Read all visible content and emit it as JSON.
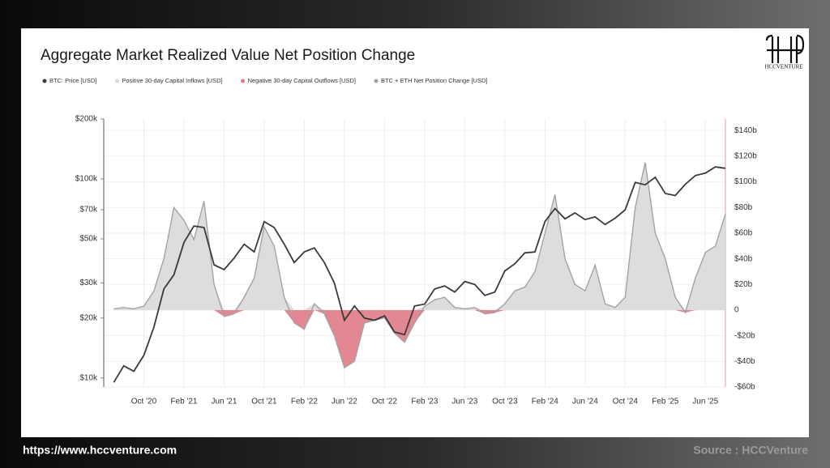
{
  "chart_data": {
    "type": "line",
    "title": "Aggregate Market Realized Value Net Position Change",
    "x": [
      "2020-07",
      "2020-08",
      "2020-09",
      "2020-10",
      "2020-11",
      "2020-12",
      "2021-01",
      "2021-02",
      "2021-03",
      "2021-04",
      "2021-05",
      "2021-06",
      "2021-07",
      "2021-08",
      "2021-09",
      "2021-10",
      "2021-11",
      "2021-12",
      "2022-01",
      "2022-02",
      "2022-03",
      "2022-04",
      "2022-05",
      "2022-06",
      "2022-07",
      "2022-08",
      "2022-09",
      "2022-10",
      "2022-11",
      "2022-12",
      "2023-01",
      "2023-02",
      "2023-03",
      "2023-04",
      "2023-05",
      "2023-06",
      "2023-07",
      "2023-08",
      "2023-09",
      "2023-10",
      "2023-11",
      "2023-12",
      "2024-01",
      "2024-02",
      "2024-03",
      "2024-04",
      "2024-05",
      "2024-06",
      "2024-07",
      "2024-08",
      "2024-09",
      "2024-10",
      "2024-11",
      "2024-12",
      "2025-01",
      "2025-02",
      "2025-03",
      "2025-04",
      "2025-05",
      "2025-06",
      "2025-07",
      "2025-08"
    ],
    "series": [
      {
        "name": "BTC: Price [USD]",
        "color": "#3a3a3a",
        "axis": "y",
        "style": "line",
        "values": [
          9500,
          11500,
          10800,
          13000,
          18000,
          28000,
          33000,
          48000,
          58000,
          57000,
          37000,
          35000,
          40000,
          47000,
          43000,
          61000,
          57000,
          47000,
          38000,
          43000,
          45000,
          38000,
          30000,
          19500,
          23000,
          20000,
          19500,
          20500,
          17000,
          16500,
          23000,
          23500,
          28000,
          29000,
          27000,
          30500,
          29500,
          26000,
          27000,
          34500,
          37500,
          42500,
          43000,
          61000,
          71000,
          63000,
          67500,
          62500,
          64500,
          59000,
          63500,
          70000,
          96000,
          93500,
          102000,
          84500,
          82500,
          94000,
          104000,
          107000,
          115000,
          113000
        ]
      },
      {
        "name": "Positive 30-day Capital Inflows [USD]",
        "color": "#d9d9d9",
        "axis": "y2",
        "style": "area",
        "values": [
          1,
          2,
          1,
          3,
          15,
          40,
          80,
          70,
          55,
          85,
          20,
          0,
          0,
          10,
          25,
          65,
          50,
          10,
          0,
          0,
          5,
          0,
          0,
          0,
          0,
          0,
          0,
          0,
          0,
          0,
          0,
          3,
          8,
          10,
          2,
          1,
          2,
          0,
          0,
          5,
          15,
          18,
          30,
          60,
          90,
          40,
          20,
          15,
          35,
          5,
          2,
          10,
          80,
          115,
          60,
          40,
          10,
          0,
          25,
          45,
          50,
          75
        ]
      },
      {
        "name": "Negative 30-day Capital Outflows [USD]",
        "color": "#e07a86",
        "axis": "y2",
        "style": "area",
        "values": [
          0,
          0,
          0,
          0,
          0,
          0,
          0,
          0,
          0,
          0,
          0,
          -5,
          -3,
          0,
          0,
          0,
          0,
          0,
          -10,
          -15,
          0,
          -3,
          -20,
          -45,
          -40,
          -10,
          -8,
          -6,
          -18,
          -25,
          -10,
          0,
          0,
          0,
          0,
          0,
          0,
          -3,
          -2,
          0,
          0,
          0,
          0,
          0,
          0,
          0,
          0,
          0,
          0,
          0,
          0,
          0,
          0,
          0,
          0,
          0,
          0,
          -2,
          0,
          0,
          0,
          0
        ]
      },
      {
        "name": "BTC + ETH Net Position Change [USD]",
        "color": "#a3a3a3",
        "axis": "y2",
        "style": "line",
        "values": [
          1,
          2,
          1,
          3,
          15,
          40,
          80,
          70,
          55,
          85,
          20,
          -5,
          -3,
          10,
          25,
          65,
          50,
          10,
          -10,
          -15,
          5,
          -3,
          -20,
          -45,
          -40,
          -10,
          -8,
          -6,
          -18,
          -25,
          -10,
          3,
          8,
          10,
          2,
          1,
          2,
          -3,
          -2,
          5,
          15,
          18,
          30,
          60,
          90,
          40,
          20,
          15,
          35,
          5,
          2,
          10,
          80,
          115,
          60,
          40,
          10,
          -2,
          25,
          45,
          50,
          75
        ]
      }
    ],
    "xlim": [
      "2020-06",
      "2025-08"
    ],
    "xticks": [
      {
        "value": "2020-10",
        "label": "Oct '20"
      },
      {
        "value": "2021-02",
        "label": "Feb '21"
      },
      {
        "value": "2021-06",
        "label": "Jun '21"
      },
      {
        "value": "2021-10",
        "label": "Oct '21"
      },
      {
        "value": "2022-02",
        "label": "Feb '22"
      },
      {
        "value": "2022-06",
        "label": "Jun '22"
      },
      {
        "value": "2022-10",
        "label": "Oct '22"
      },
      {
        "value": "2023-02",
        "label": "Feb '23"
      },
      {
        "value": "2023-06",
        "label": "Jun '23"
      },
      {
        "value": "2023-10",
        "label": "Oct '23"
      },
      {
        "value": "2024-02",
        "label": "Feb '24"
      },
      {
        "value": "2024-06",
        "label": "Jun '24"
      },
      {
        "value": "2024-10",
        "label": "Oct '24"
      },
      {
        "value": "2025-02",
        "label": "Feb '25"
      },
      {
        "value": "2025-06",
        "label": "Jun '25"
      }
    ],
    "ylim": [
      9000,
      200000
    ],
    "ylog": true,
    "yticks": [
      {
        "value": 10000,
        "label": "$10k"
      },
      {
        "value": 20000,
        "label": "$20k"
      },
      {
        "value": 30000,
        "label": "$30k"
      },
      {
        "value": 50000,
        "label": "$50k"
      },
      {
        "value": 70000,
        "label": "$70k"
      },
      {
        "value": 100000,
        "label": "$100k"
      },
      {
        "value": 200000,
        "label": "$200k"
      }
    ],
    "y2lim": [
      -60,
      149
    ],
    "y2ticks": [
      {
        "value": -60,
        "label": "-$60b"
      },
      {
        "value": -40,
        "label": "-$40b"
      },
      {
        "value": -20,
        "label": "-$20b"
      },
      0,
      {
        "value": 20,
        "label": "$20b"
      },
      {
        "value": 40,
        "label": "$40b"
      },
      {
        "value": 60,
        "label": "$60b"
      },
      {
        "value": 80,
        "label": "$80b"
      },
      {
        "value": 100,
        "label": "$100b"
      },
      {
        "value": 120,
        "label": "$120b"
      },
      {
        "value": 140,
        "label": "$140b"
      }
    ],
    "grid": true
  },
  "logo": "HCCVENTURE",
  "footer": {
    "url": "https://www.hccventure.com",
    "source": "Source : HCCVenture"
  }
}
